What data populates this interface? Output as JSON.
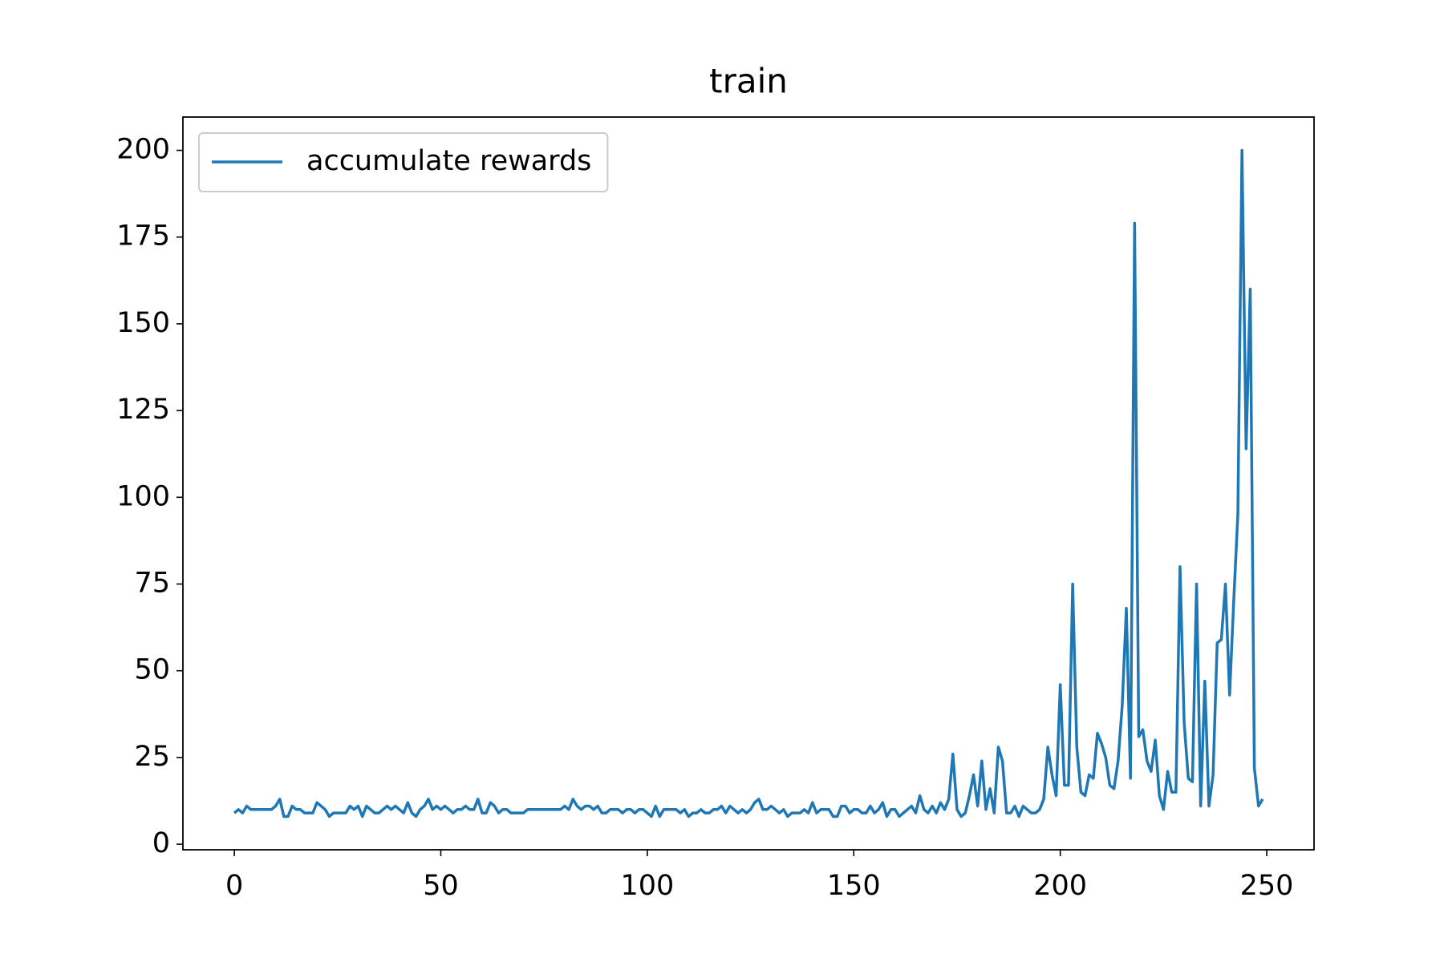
{
  "chart_data": {
    "type": "line",
    "title": "train",
    "x": [
      0,
      1,
      2,
      3,
      4,
      5,
      6,
      7,
      8,
      9,
      10,
      11,
      12,
      13,
      14,
      15,
      16,
      17,
      18,
      19,
      20,
      21,
      22,
      23,
      24,
      25,
      26,
      27,
      28,
      29,
      30,
      31,
      32,
      33,
      34,
      35,
      36,
      37,
      38,
      39,
      40,
      41,
      42,
      43,
      44,
      45,
      46,
      47,
      48,
      49,
      50,
      51,
      52,
      53,
      54,
      55,
      56,
      57,
      58,
      59,
      60,
      61,
      62,
      63,
      64,
      65,
      66,
      67,
      68,
      69,
      70,
      71,
      72,
      73,
      74,
      75,
      76,
      77,
      78,
      79,
      80,
      81,
      82,
      83,
      84,
      85,
      86,
      87,
      88,
      89,
      90,
      91,
      92,
      93,
      94,
      95,
      96,
      97,
      98,
      99,
      100,
      101,
      102,
      103,
      104,
      105,
      106,
      107,
      108,
      109,
      110,
      111,
      112,
      113,
      114,
      115,
      116,
      117,
      118,
      119,
      120,
      121,
      122,
      123,
      124,
      125,
      126,
      127,
      128,
      129,
      130,
      131,
      132,
      133,
      134,
      135,
      136,
      137,
      138,
      139,
      140,
      141,
      142,
      143,
      144,
      145,
      146,
      147,
      148,
      149,
      150,
      151,
      152,
      153,
      154,
      155,
      156,
      157,
      158,
      159,
      160,
      161,
      162,
      163,
      164,
      165,
      166,
      167,
      168,
      169,
      170,
      171,
      172,
      173,
      174,
      175,
      176,
      177,
      178,
      179,
      180,
      181,
      182,
      183,
      184,
      185,
      186,
      187,
      188,
      189,
      190,
      191,
      192,
      193,
      194,
      195,
      196,
      197,
      198,
      199,
      200,
      201,
      202,
      203,
      204,
      205,
      206,
      207,
      208,
      209,
      210,
      211,
      212,
      213,
      214,
      215,
      216,
      217,
      218,
      219,
      220,
      221,
      222,
      223,
      224,
      225,
      226,
      227,
      228,
      229,
      230,
      231,
      232,
      233,
      234,
      235,
      236,
      237,
      238,
      239,
      240,
      241,
      242,
      243,
      244,
      245,
      246,
      247,
      248,
      249
    ],
    "series": [
      {
        "name": "accumulate rewards",
        "color": "#1f77b4",
        "values": [
          9,
          10,
          9,
          11,
          10,
          10,
          10,
          10,
          10,
          10,
          11,
          13,
          8,
          8,
          11,
          10,
          10,
          9,
          9,
          9,
          12,
          11,
          10,
          8,
          9,
          9,
          9,
          9,
          11,
          10,
          11,
          8,
          11,
          10,
          9,
          9,
          10,
          11,
          10,
          11,
          10,
          9,
          12,
          9,
          8,
          10,
          11,
          13,
          10,
          11,
          10,
          11,
          10,
          9,
          10,
          10,
          11,
          10,
          10,
          13,
          9,
          9,
          12,
          11,
          9,
          10,
          10,
          9,
          9,
          9,
          9,
          10,
          10,
          10,
          10,
          10,
          10,
          10,
          10,
          10,
          11,
          10,
          13,
          11,
          10,
          11,
          11,
          10,
          11,
          9,
          9,
          10,
          10,
          10,
          9,
          10,
          10,
          9,
          10,
          10,
          9,
          8,
          11,
          8,
          10,
          10,
          10,
          10,
          9,
          10,
          8,
          9,
          9,
          10,
          9,
          9,
          10,
          10,
          11,
          9,
          11,
          10,
          9,
          10,
          9,
          10,
          12,
          13,
          10,
          10,
          11,
          10,
          9,
          10,
          8,
          9,
          9,
          9,
          10,
          9,
          12,
          9,
          10,
          10,
          10,
          8,
          8,
          11,
          11,
          9,
          10,
          10,
          9,
          9,
          11,
          9,
          10,
          12,
          8,
          10,
          10,
          8,
          9,
          10,
          11,
          9,
          14,
          10,
          9,
          11,
          9,
          12,
          10,
          13,
          26,
          10,
          8,
          9,
          14,
          20,
          11,
          24,
          10,
          16,
          9,
          28,
          24,
          9,
          9,
          11,
          8,
          11,
          10,
          9,
          9,
          10,
          13,
          28,
          20,
          14,
          46,
          17,
          17,
          75,
          28,
          15,
          14,
          20,
          19,
          32,
          29,
          25,
          17,
          16,
          24,
          40,
          68,
          19,
          179,
          31,
          33,
          24,
          21,
          30,
          14,
          10,
          21,
          15,
          15,
          80,
          35,
          19,
          18,
          75,
          11,
          47,
          11,
          20,
          58,
          59,
          75,
          43,
          70,
          95,
          200,
          114,
          160,
          22,
          11,
          13
        ]
      }
    ],
    "xlim": [
      -12.45,
      261.45
    ],
    "xticks": [
      0,
      50,
      100,
      150,
      200,
      250
    ],
    "ylim": [
      -1.6,
      209.6
    ],
    "yticks": [
      0,
      25,
      50,
      75,
      100,
      125,
      150,
      175,
      200
    ],
    "grid": false,
    "legend": "upper left"
  }
}
